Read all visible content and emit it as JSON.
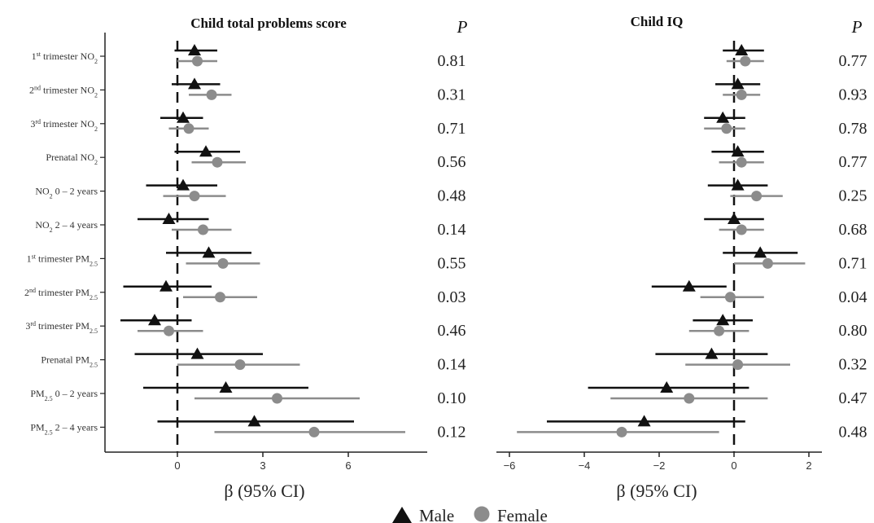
{
  "chart_data": [
    {
      "type": "forest",
      "title": "Child total problems score",
      "xlabel": "β (95% CI)",
      "p_header": "P",
      "xlim": [
        -2,
        8
      ],
      "xticks": [
        0,
        3,
        6
      ],
      "reference_line": 0,
      "categories": [
        {
          "pre": "1",
          "sup": "st",
          "main": " trimester NO",
          "sub": "2",
          "tail": ""
        },
        {
          "pre": "2",
          "sup": "nd",
          "main": " trimester NO",
          "sub": "2",
          "tail": ""
        },
        {
          "pre": "3",
          "sup": "rd",
          "main": " trimester NO",
          "sub": "2",
          "tail": ""
        },
        {
          "pre": "",
          "sup": "",
          "main": "Prenatal NO",
          "sub": "2",
          "tail": ""
        },
        {
          "pre": "",
          "sup": "",
          "main": "NO",
          "sub": "2",
          "tail": " 0 – 2 years"
        },
        {
          "pre": "",
          "sup": "",
          "main": "NO",
          "sub": "2",
          "tail": " 2 – 4 years"
        },
        {
          "pre": "1",
          "sup": "st",
          "main": " trimester PM",
          "sub": "2.5",
          "tail": ""
        },
        {
          "pre": "2",
          "sup": "nd",
          "main": " trimester PM",
          "sub": "2.5",
          "tail": ""
        },
        {
          "pre": "3",
          "sup": "rd",
          "main": " trimester PM",
          "sub": "2.5",
          "tail": ""
        },
        {
          "pre": "",
          "sup": "",
          "main": "Prenatal PM",
          "sub": "2.5",
          "tail": ""
        },
        {
          "pre": "",
          "sup": "",
          "main": "PM",
          "sub": "2.5",
          "tail": " 0 – 2 years"
        },
        {
          "pre": "",
          "sup": "",
          "main": "PM",
          "sub": "2.5",
          "tail": " 2 – 4 years"
        }
      ],
      "series": [
        {
          "name": "Male",
          "estimate": [
            0.6,
            0.6,
            0.2,
            1.0,
            0.2,
            -0.3,
            1.1,
            -0.4,
            -0.8,
            0.7,
            1.7,
            2.7
          ],
          "lower": [
            -0.1,
            -0.2,
            -0.6,
            -0.1,
            -1.1,
            -1.4,
            -0.4,
            -1.9,
            -2.0,
            -1.5,
            -1.2,
            -0.7
          ],
          "upper": [
            1.4,
            1.5,
            0.9,
            2.2,
            1.4,
            1.1,
            2.6,
            1.2,
            0.5,
            3.0,
            4.6,
            6.2
          ]
        },
        {
          "name": "Female",
          "estimate": [
            0.7,
            1.2,
            0.4,
            1.4,
            0.6,
            0.9,
            1.6,
            1.5,
            -0.3,
            2.2,
            3.5,
            4.8
          ],
          "lower": [
            0.0,
            0.4,
            -0.3,
            0.5,
            -0.5,
            -0.2,
            0.3,
            0.2,
            -1.4,
            0.0,
            0.6,
            1.3
          ],
          "upper": [
            1.4,
            1.9,
            1.1,
            2.4,
            1.7,
            1.9,
            2.9,
            2.8,
            0.9,
            4.3,
            6.4,
            8.0
          ]
        }
      ],
      "p_values": [
        "0.81",
        "0.31",
        "0.71",
        "0.56",
        "0.48",
        "0.14",
        "0.55",
        "0.03",
        "0.46",
        "0.14",
        "0.10",
        "0.12"
      ]
    },
    {
      "type": "forest",
      "title": "Child IQ",
      "xlabel": "β (95% CI)",
      "p_header": "P",
      "xlim": [
        -6.3,
        2.3
      ],
      "xticks": [
        -6,
        -4,
        -2,
        0,
        2
      ],
      "reference_line": 0,
      "series": [
        {
          "name": "Male",
          "estimate": [
            0.2,
            0.1,
            -0.3,
            0.1,
            0.1,
            0.0,
            0.7,
            -1.2,
            -0.3,
            -0.6,
            -1.8,
            -2.4
          ],
          "lower": [
            -0.3,
            -0.5,
            -0.8,
            -0.6,
            -0.7,
            -0.8,
            -0.3,
            -2.2,
            -1.1,
            -2.1,
            -3.9,
            -5.0
          ],
          "upper": [
            0.8,
            0.7,
            0.3,
            0.8,
            0.9,
            0.8,
            1.7,
            -0.2,
            0.5,
            0.9,
            0.4,
            0.3
          ]
        },
        {
          "name": "Female",
          "estimate": [
            0.3,
            0.2,
            -0.2,
            0.2,
            0.6,
            0.2,
            0.9,
            -0.1,
            -0.4,
            0.1,
            -1.2,
            -3.0
          ],
          "lower": [
            -0.2,
            -0.3,
            -0.8,
            -0.4,
            -0.1,
            -0.4,
            0.0,
            -0.9,
            -1.2,
            -1.3,
            -3.3,
            -5.8
          ],
          "upper": [
            0.8,
            0.7,
            0.3,
            0.8,
            1.3,
            0.8,
            1.9,
            0.8,
            0.4,
            1.5,
            0.9,
            -0.4
          ]
        }
      ],
      "p_values": [
        "0.77",
        "0.93",
        "0.78",
        "0.77",
        "0.25",
        "0.68",
        "0.71",
        "0.04",
        "0.80",
        "0.32",
        "0.47",
        "0.48"
      ]
    }
  ],
  "legend": {
    "position": "bottom-center",
    "items": [
      {
        "label": "Male",
        "shape": "triangle",
        "color": "#111111"
      },
      {
        "label": "Female",
        "shape": "circle",
        "color": "#8c8c8c"
      }
    ]
  },
  "colors": {
    "male": "#111111",
    "female": "#8c8c8c",
    "axis": "#222222",
    "text": "#333333"
  }
}
